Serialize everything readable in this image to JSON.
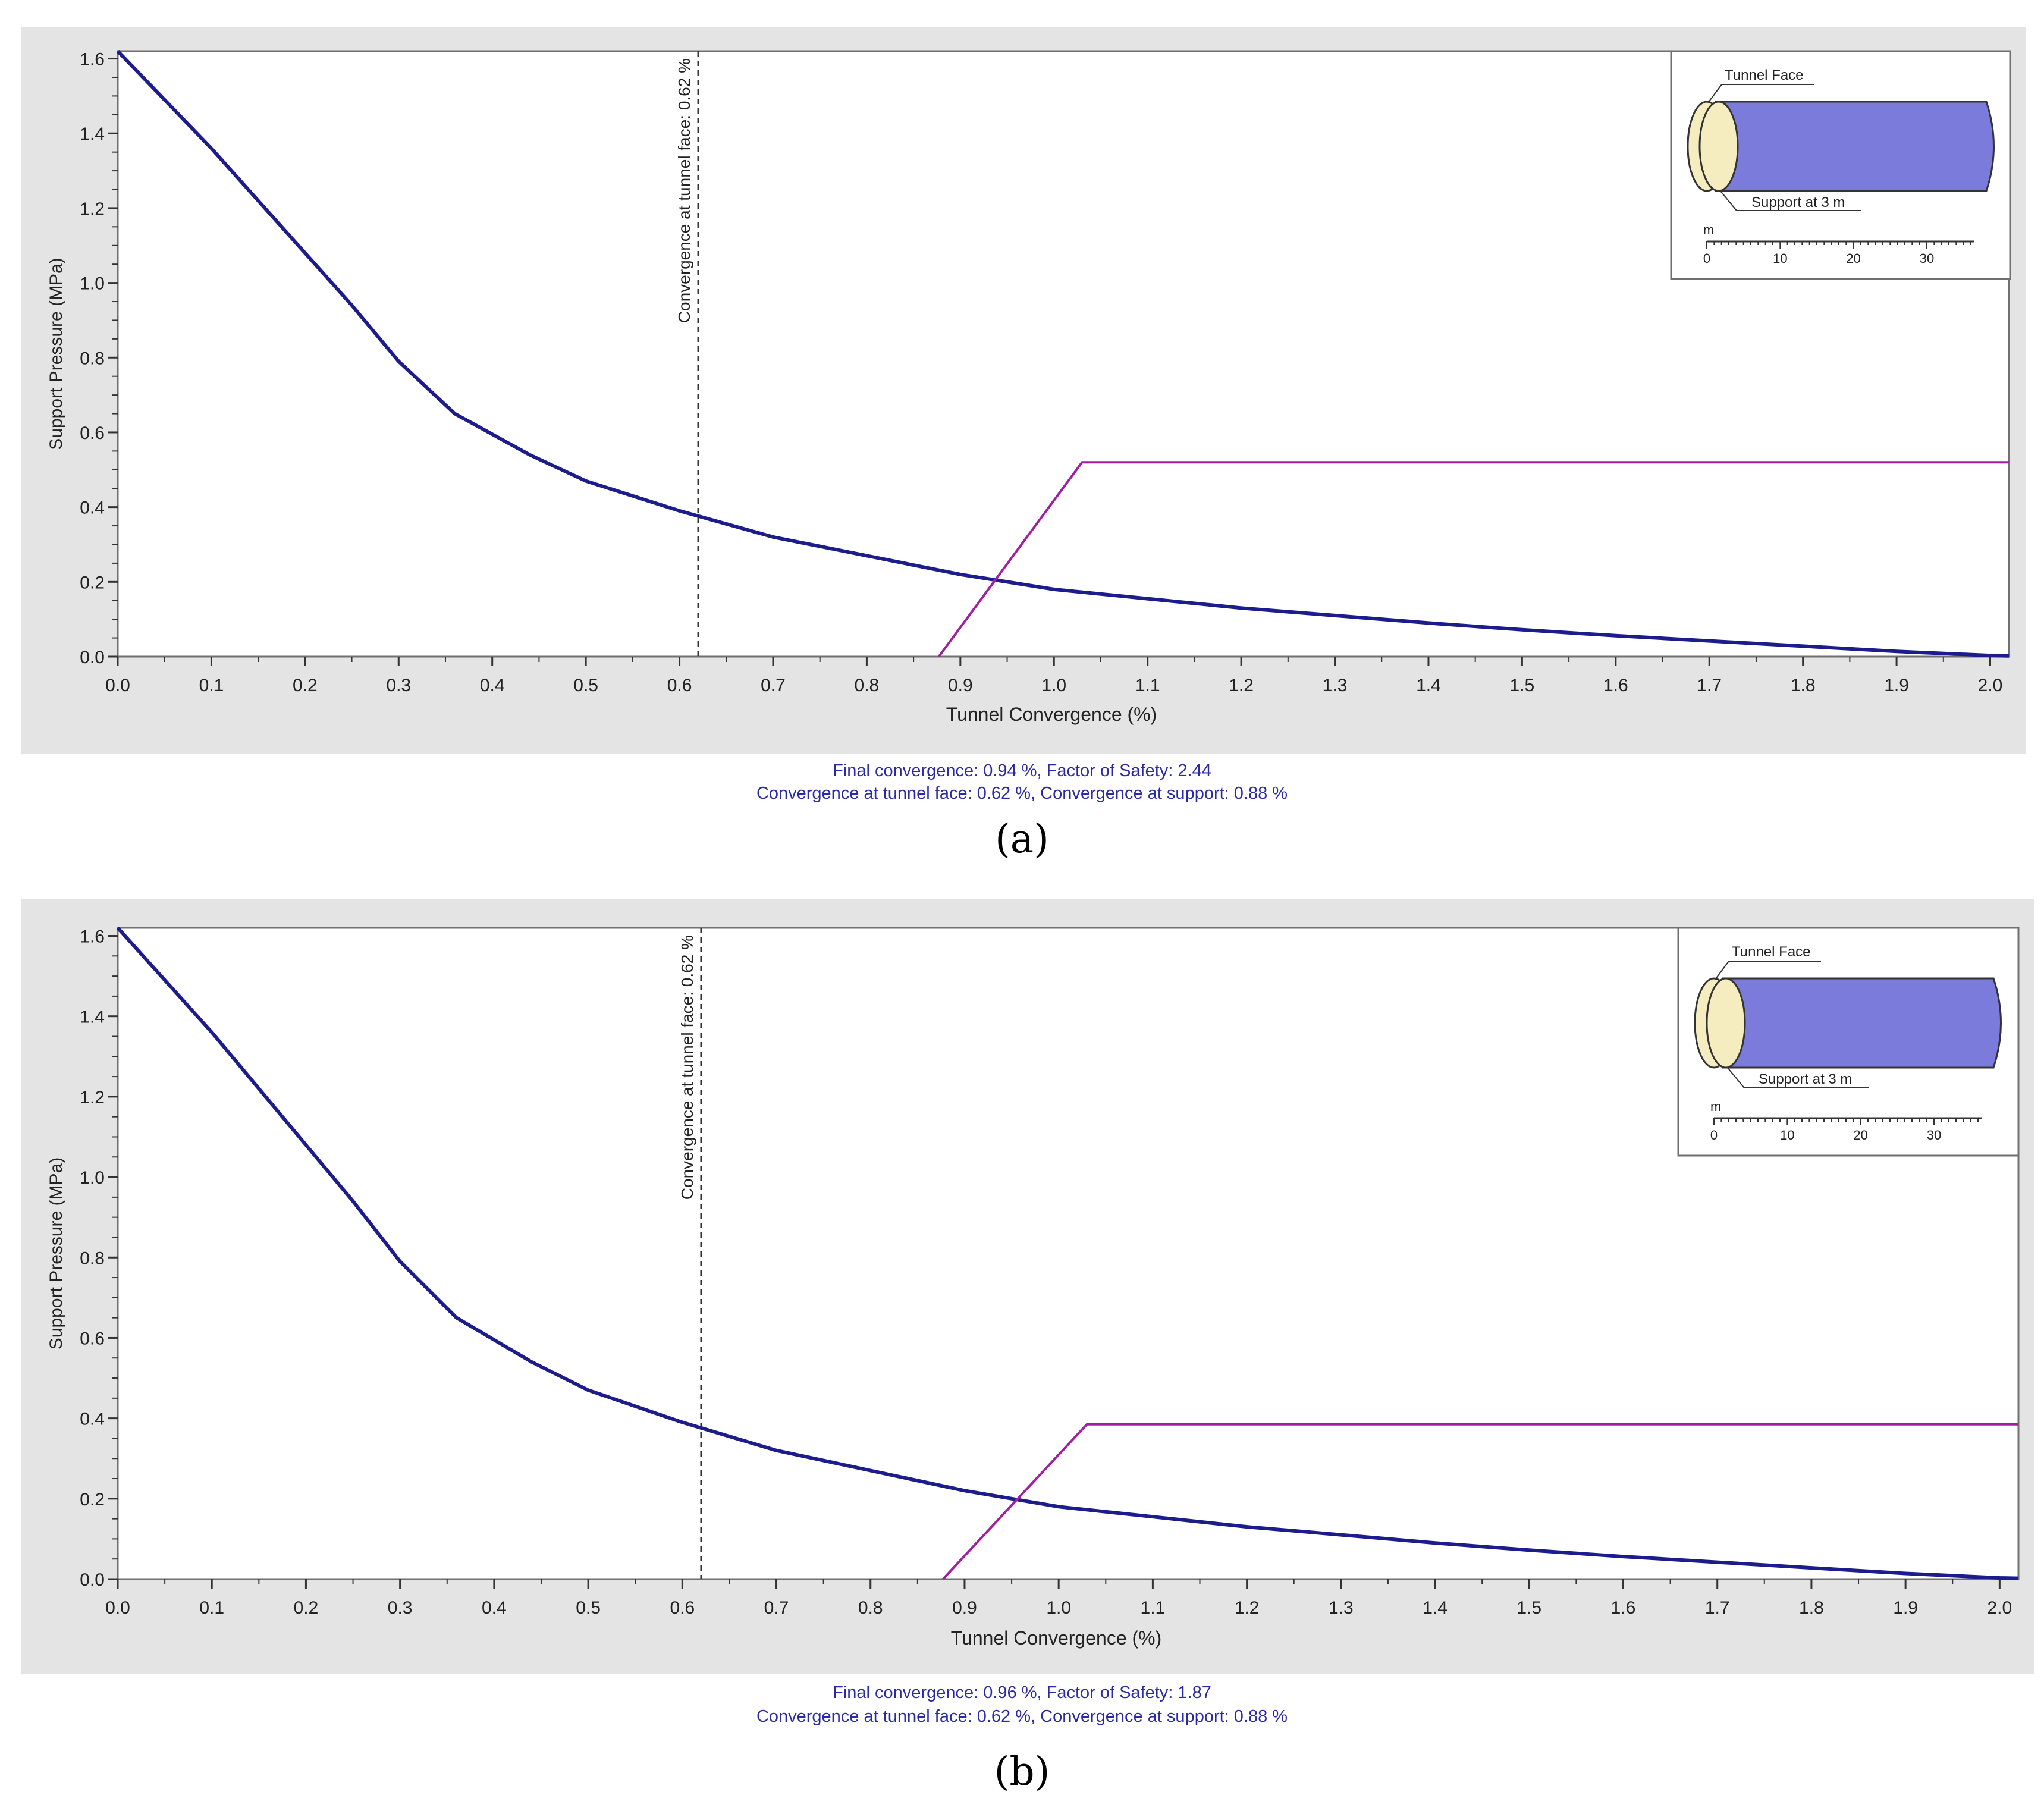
{
  "chart_data": [
    {
      "type": "line",
      "panel_label": "(a)",
      "xlabel": "Tunnel Convergence (%)",
      "ylabel": "Support Pressure (MPa)",
      "xlim": [
        0,
        2.02
      ],
      "ylim": [
        0,
        1.62
      ],
      "x_ticks": [
        "0.0",
        "0.1",
        "0.2",
        "0.3",
        "0.4",
        "0.5",
        "0.6",
        "0.7",
        "0.8",
        "0.9",
        "1.0",
        "1.1",
        "1.2",
        "1.3",
        "1.4",
        "1.5",
        "1.6",
        "1.7",
        "1.8",
        "1.9",
        "2.0"
      ],
      "y_ticks": [
        "0.0",
        "0.2",
        "0.4",
        "0.6",
        "0.8",
        "1.0",
        "1.2",
        "1.4",
        "1.6"
      ],
      "grid": false,
      "series": [
        {
          "color": "#1c1c8c",
          "x": [
            0,
            0.05,
            0.1,
            0.15,
            0.2,
            0.25,
            0.3,
            0.36,
            0.44,
            0.5,
            0.6,
            0.7,
            0.8,
            0.9,
            1.0,
            1.1,
            1.2,
            1.3,
            1.4,
            1.5,
            1.6,
            1.7,
            1.8,
            1.9,
            2.0,
            2.02
          ],
          "y": [
            1.62,
            1.49,
            1.36,
            1.22,
            1.08,
            0.94,
            0.79,
            0.65,
            0.54,
            0.47,
            0.39,
            0.32,
            0.27,
            0.22,
            0.18,
            0.155,
            0.13,
            0.11,
            0.09,
            0.072,
            0.056,
            0.042,
            0.028,
            0.014,
            0.003,
            0.002
          ]
        },
        {
          "color": "#a020a0",
          "x": [
            0.877,
            1.03,
            2.02
          ],
          "y": [
            0,
            0.52,
            0.52
          ]
        }
      ],
      "vline": {
        "x": 0.62,
        "label": "Convergence at tunnel face: 0.62 %"
      },
      "inset": {
        "tunnel_face_label": "Tunnel Face",
        "support_label": "Support at 3 m",
        "scale_unit": "m",
        "scale_ticks": [
          "0",
          "10",
          "20",
          "30"
        ],
        "face_color": "#f5edc0",
        "tunnel_color": "#7b7bdc"
      },
      "caption_line1": "Final convergence: 0.94 %,   Factor of Safety:   2.44",
      "caption_line2": "Convergence at tunnel face: 0.62 %,   Convergence at support: 0.88 %"
    },
    {
      "type": "line",
      "panel_label": "(b)",
      "xlabel": "Tunnel Convergence (%)",
      "ylabel": "Support Pressure (MPa)",
      "xlim": [
        0,
        2.02
      ],
      "ylim": [
        0,
        1.62
      ],
      "x_ticks": [
        "0.0",
        "0.1",
        "0.2",
        "0.3",
        "0.4",
        "0.5",
        "0.6",
        "0.7",
        "0.8",
        "0.9",
        "1.0",
        "1.1",
        "1.2",
        "1.3",
        "1.4",
        "1.5",
        "1.6",
        "1.7",
        "1.8",
        "1.9",
        "2.0"
      ],
      "y_ticks": [
        "0.0",
        "0.2",
        "0.4",
        "0.6",
        "0.8",
        "1.0",
        "1.2",
        "1.4",
        "1.6"
      ],
      "grid": false,
      "series": [
        {
          "color": "#1c1c8c",
          "x": [
            0,
            0.05,
            0.1,
            0.15,
            0.2,
            0.25,
            0.3,
            0.36,
            0.44,
            0.5,
            0.6,
            0.7,
            0.8,
            0.9,
            1.0,
            1.1,
            1.2,
            1.3,
            1.4,
            1.5,
            1.6,
            1.7,
            1.8,
            1.9,
            2.0,
            2.02
          ],
          "y": [
            1.62,
            1.49,
            1.36,
            1.22,
            1.08,
            0.94,
            0.79,
            0.65,
            0.54,
            0.47,
            0.39,
            0.32,
            0.27,
            0.22,
            0.18,
            0.155,
            0.13,
            0.11,
            0.09,
            0.072,
            0.056,
            0.042,
            0.028,
            0.014,
            0.003,
            0.002
          ]
        },
        {
          "color": "#a020a0",
          "x": [
            0.877,
            1.03,
            2.02
          ],
          "y": [
            0,
            0.385,
            0.385
          ]
        }
      ],
      "vline": {
        "x": 0.62,
        "label": "Convergence at tunnel face: 0.62 %"
      },
      "inset": {
        "tunnel_face_label": "Tunnel Face",
        "support_label": "Support at 3 m",
        "scale_unit": "m",
        "scale_ticks": [
          "0",
          "10",
          "20",
          "30"
        ],
        "face_color": "#f5edc0",
        "tunnel_color": "#7b7bdc"
      },
      "caption_line1": "Final convergence: 0.96 %,   Factor of Safety:   1.87",
      "caption_line2": "Convergence at tunnel face: 0.62 %,   Convergence at support: 0.88 %"
    }
  ]
}
